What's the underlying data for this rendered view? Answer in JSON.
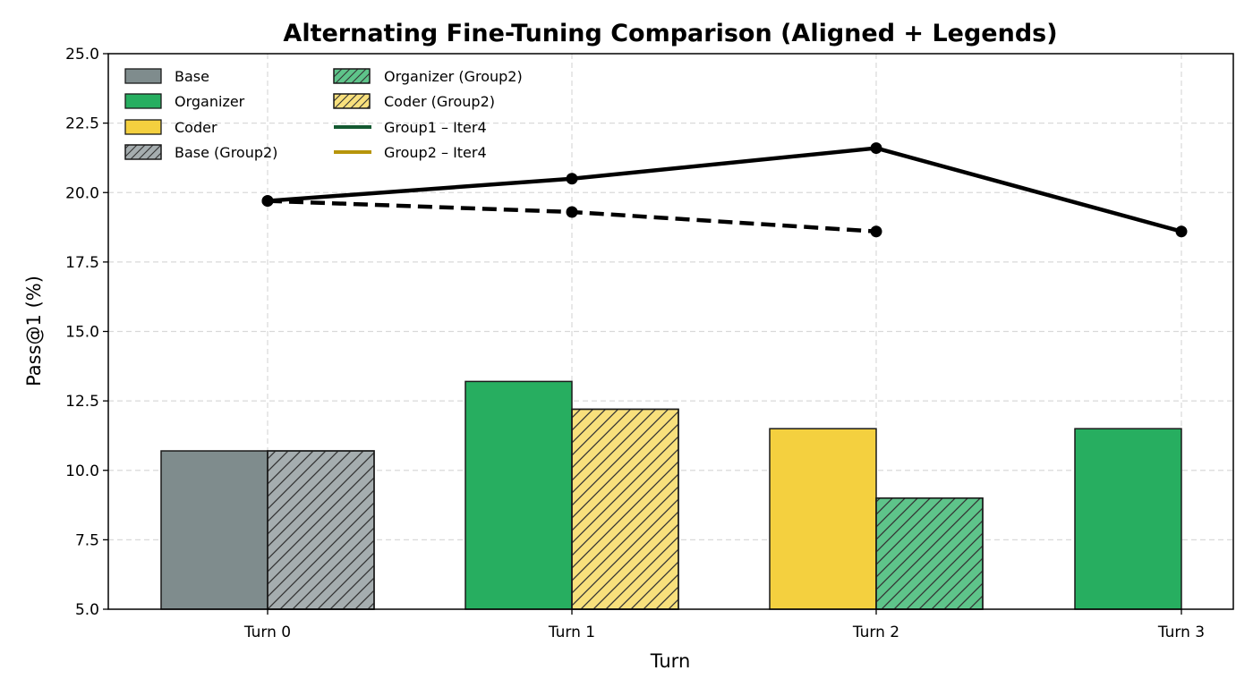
{
  "chart_data": {
    "type": "bar",
    "title": "Alternating Fine-Tuning Comparison (Aligned + Legends)",
    "xlabel": "Turn",
    "ylabel": "Pass@1 (%)",
    "categories": [
      "Turn 0",
      "Turn 1",
      "Turn 2",
      "Turn 3"
    ],
    "ylim": [
      5.0,
      25.0
    ],
    "yticks": [
      "5.0",
      "7.5",
      "10.0",
      "12.5",
      "15.0",
      "17.5",
      "20.0",
      "22.5",
      "25.0"
    ],
    "grid": true,
    "legend_position": "top-left",
    "bars": [
      {
        "category": "Turn 0",
        "group": "Group1",
        "role": "Base",
        "value": 10.7
      },
      {
        "category": "Turn 0",
        "group": "Group2",
        "role": "Base (Group2)",
        "value": 10.7
      },
      {
        "category": "Turn 1",
        "group": "Group1",
        "role": "Organizer",
        "value": 13.2
      },
      {
        "category": "Turn 1",
        "group": "Group2",
        "role": "Coder (Group2)",
        "value": 12.2
      },
      {
        "category": "Turn 2",
        "group": "Group1",
        "role": "Coder",
        "value": 11.5
      },
      {
        "category": "Turn 2",
        "group": "Group2",
        "role": "Organizer (Group2)",
        "value": 9.0
      },
      {
        "category": "Turn 3",
        "group": "Group1",
        "role": "Organizer",
        "value": 11.5
      }
    ],
    "lines": [
      {
        "name": "Group1 – Iter4",
        "style": "solid",
        "values": [
          19.7,
          20.5,
          21.6,
          18.6
        ]
      },
      {
        "name": "Group2 – Iter4",
        "style": "dashed",
        "values": [
          19.7,
          19.3,
          18.6
        ]
      }
    ],
    "legend": [
      {
        "label": "Base",
        "kind": "bar",
        "color": "#7f8c8d",
        "hatch": false
      },
      {
        "label": "Organizer",
        "kind": "bar",
        "color": "#27ae60",
        "hatch": false
      },
      {
        "label": "Coder",
        "kind": "bar",
        "color": "#f4d03f",
        "hatch": false
      },
      {
        "label": "Base (Group2)",
        "kind": "bar",
        "color": "#a5adaf",
        "hatch": true
      },
      {
        "label": "Organizer (Group2)",
        "kind": "bar",
        "color": "#5ec48a",
        "hatch": true
      },
      {
        "label": "Coder (Group2)",
        "kind": "bar",
        "color": "#f8e07c",
        "hatch": true
      },
      {
        "label": "Group1 – Iter4",
        "kind": "line",
        "color": "#145a32"
      },
      {
        "label": "Group2 – Iter4",
        "kind": "line",
        "color": "#b7950b"
      }
    ],
    "colors": {
      "Base": "#7f8c8d",
      "Organizer": "#27ae60",
      "Coder": "#f4d03f",
      "Base (Group2)": "#a5adaf",
      "Organizer (Group2)": "#5ec48a",
      "Coder (Group2)": "#f8e07c",
      "line": "#000000"
    }
  }
}
